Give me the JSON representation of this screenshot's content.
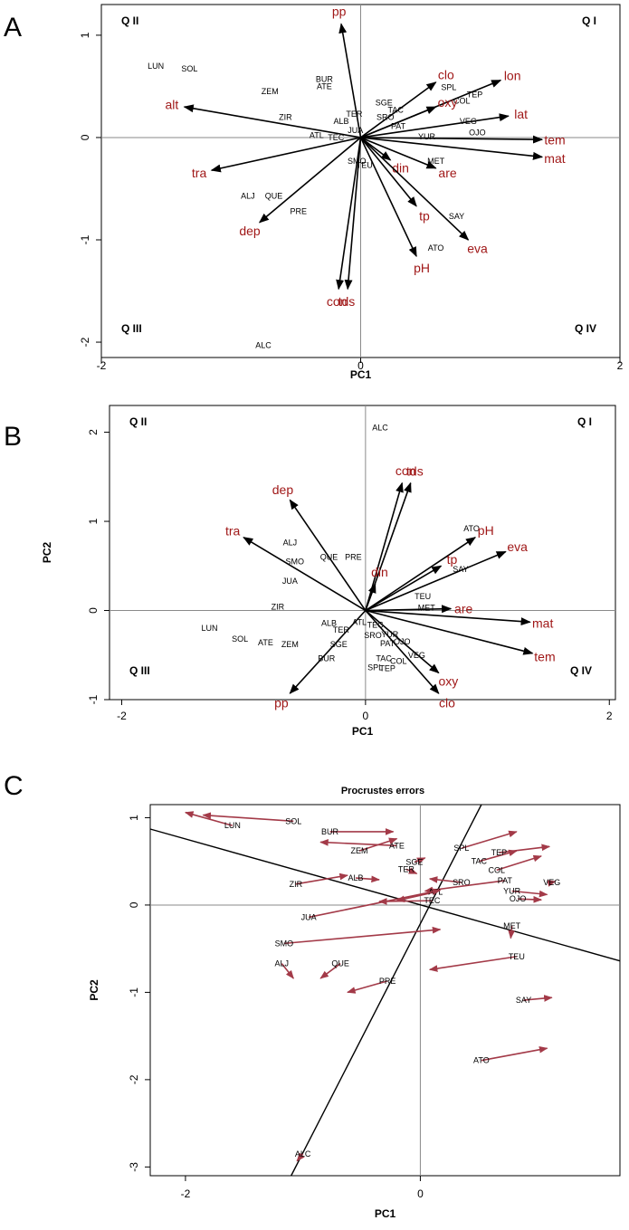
{
  "panel_labels": [
    "A",
    "B",
    "C"
  ],
  "chart_data": [
    {
      "type": "scatter",
      "subtype": "biplot",
      "panel": "A",
      "title": "",
      "xlabel": "PC1",
      "ylabel": "",
      "xlim": [
        -2,
        2
      ],
      "ylim": [
        -2.15,
        1.3
      ],
      "xticks": [
        "-2",
        "0",
        "2"
      ],
      "yticks": [
        "-2",
        "-1",
        "0",
        "1"
      ],
      "quadrants": [
        "Q II",
        "Q I",
        "Q III",
        "Q IV"
      ],
      "sites": [
        {
          "label": "LUN",
          "x": -1.58,
          "y": 0.7
        },
        {
          "label": "SOL",
          "x": -1.32,
          "y": 0.67
        },
        {
          "label": "BUR",
          "x": -0.28,
          "y": 0.57
        },
        {
          "label": "ATE",
          "x": -0.28,
          "y": 0.5
        },
        {
          "label": "ZEM",
          "x": -0.7,
          "y": 0.45
        },
        {
          "label": "ZIR",
          "x": -0.58,
          "y": 0.2
        },
        {
          "label": "ALB",
          "x": -0.15,
          "y": 0.16
        },
        {
          "label": "TER",
          "x": -0.05,
          "y": 0.23
        },
        {
          "label": "JUA",
          "x": -0.04,
          "y": 0.07
        },
        {
          "label": "ATL",
          "x": -0.34,
          "y": 0.02
        },
        {
          "label": "TEC",
          "x": -0.19,
          "y": 0.0
        },
        {
          "label": "SGE",
          "x": 0.18,
          "y": 0.34
        },
        {
          "label": "TAC",
          "x": 0.27,
          "y": 0.27
        },
        {
          "label": "SRO",
          "x": 0.19,
          "y": 0.2
        },
        {
          "label": "PAT",
          "x": 0.29,
          "y": 0.11
        },
        {
          "label": "SPL",
          "x": 0.68,
          "y": 0.49
        },
        {
          "label": "TEP",
          "x": 0.88,
          "y": 0.42
        },
        {
          "label": "COL",
          "x": 0.78,
          "y": 0.36
        },
        {
          "label": "VEG",
          "x": 0.83,
          "y": 0.16
        },
        {
          "label": "OJO",
          "x": 0.9,
          "y": 0.05
        },
        {
          "label": "YUR",
          "x": 0.51,
          "y": 0.01
        },
        {
          "label": "MET",
          "x": 0.58,
          "y": -0.23
        },
        {
          "label": "SMO",
          "x": -0.03,
          "y": -0.23
        },
        {
          "label": "TEU",
          "x": 0.03,
          "y": -0.27
        },
        {
          "label": "ALJ",
          "x": -0.87,
          "y": -0.57
        },
        {
          "label": "QUE",
          "x": -0.67,
          "y": -0.57
        },
        {
          "label": "PRE",
          "x": -0.48,
          "y": -0.72
        },
        {
          "label": "SAY",
          "x": 0.74,
          "y": -0.77
        },
        {
          "label": "ATO",
          "x": 0.58,
          "y": -1.08
        },
        {
          "label": "ALC",
          "x": -0.75,
          "y": -2.03
        }
      ],
      "vectors": [
        {
          "label": "pp",
          "x": -0.15,
          "y": 1.11
        },
        {
          "label": "clo",
          "x": 0.58,
          "y": 0.54
        },
        {
          "label": "lon",
          "x": 1.08,
          "y": 0.56
        },
        {
          "label": "alt",
          "x": -1.36,
          "y": 0.3
        },
        {
          "label": "oxy",
          "x": 0.58,
          "y": 0.3
        },
        {
          "label": "lat",
          "x": 1.14,
          "y": 0.21
        },
        {
          "label": "tem",
          "x": 1.4,
          "y": -0.02
        },
        {
          "label": "mat",
          "x": 1.4,
          "y": -0.19
        },
        {
          "label": "din",
          "x": 0.23,
          "y": -0.22
        },
        {
          "label": "are",
          "x": 0.58,
          "y": -0.3
        },
        {
          "label": "tra",
          "x": -1.15,
          "y": -0.32
        },
        {
          "label": "dep",
          "x": -0.78,
          "y": -0.83
        },
        {
          "label": "tp",
          "x": 0.43,
          "y": -0.67
        },
        {
          "label": "eva",
          "x": 0.83,
          "y": -1.0
        },
        {
          "label": "pH",
          "x": 0.43,
          "y": -1.16
        },
        {
          "label": "con",
          "x": -0.17,
          "y": -1.48
        },
        {
          "label": "tds",
          "x": -0.1,
          "y": -1.48
        }
      ]
    },
    {
      "type": "scatter",
      "subtype": "biplot",
      "panel": "B",
      "title": "",
      "xlabel": "PC1",
      "ylabel": "PC2",
      "xlim": [
        -2.1,
        2.05
      ],
      "ylim": [
        -1.0,
        2.3
      ],
      "xticks": [
        "-2",
        "0",
        "2"
      ],
      "yticks": [
        "-1",
        "0",
        "1",
        "2"
      ],
      "quadrants": [
        "Q II",
        "Q I",
        "Q III",
        "Q IV"
      ],
      "sites": [
        {
          "label": "ALC",
          "x": 0.12,
          "y": 2.05
        },
        {
          "label": "ALJ",
          "x": -0.62,
          "y": 0.76
        },
        {
          "label": "SMO",
          "x": -0.58,
          "y": 0.55
        },
        {
          "label": "QUE",
          "x": -0.3,
          "y": 0.6
        },
        {
          "label": "PRE",
          "x": -0.1,
          "y": 0.6
        },
        {
          "label": "JUA",
          "x": -0.62,
          "y": 0.33
        },
        {
          "label": "ZIR",
          "x": -0.72,
          "y": 0.04
        },
        {
          "label": "LUN",
          "x": -1.28,
          "y": -0.2
        },
        {
          "label": "SOL",
          "x": -1.03,
          "y": -0.32
        },
        {
          "label": "ATE",
          "x": -0.82,
          "y": -0.36
        },
        {
          "label": "ZEM",
          "x": -0.62,
          "y": -0.38
        },
        {
          "label": "BUR",
          "x": -0.32,
          "y": -0.54
        },
        {
          "label": "ALB",
          "x": -0.3,
          "y": -0.14
        },
        {
          "label": "TER",
          "x": -0.2,
          "y": -0.22
        },
        {
          "label": "SGE",
          "x": -0.22,
          "y": -0.38
        },
        {
          "label": "ATL",
          "x": -0.05,
          "y": -0.13
        },
        {
          "label": "TEC",
          "x": 0.08,
          "y": -0.16
        },
        {
          "label": "SRO",
          "x": 0.06,
          "y": -0.28
        },
        {
          "label": "PAT",
          "x": 0.18,
          "y": -0.37
        },
        {
          "label": "OJO",
          "x": 0.3,
          "y": -0.35
        },
        {
          "label": "YUR",
          "x": 0.2,
          "y": -0.27
        },
        {
          "label": "VEG",
          "x": 0.42,
          "y": -0.5
        },
        {
          "label": "TAC",
          "x": 0.15,
          "y": -0.54
        },
        {
          "label": "COL",
          "x": 0.27,
          "y": -0.57
        },
        {
          "label": "SPL",
          "x": 0.08,
          "y": -0.64
        },
        {
          "label": "TEP",
          "x": 0.18,
          "y": -0.65
        },
        {
          "label": "TEU",
          "x": 0.47,
          "y": 0.16
        },
        {
          "label": "MET",
          "x": 0.5,
          "y": 0.03
        },
        {
          "label": "SAY",
          "x": 0.78,
          "y": 0.46
        },
        {
          "label": "ATO",
          "x": 0.87,
          "y": 0.92
        }
      ],
      "vectors": [
        {
          "label": "con",
          "x": 0.3,
          "y": 1.43
        },
        {
          "label": "tds",
          "x": 0.37,
          "y": 1.43
        },
        {
          "label": "dep",
          "x": -0.62,
          "y": 1.24
        },
        {
          "label": "tra",
          "x": -1.0,
          "y": 0.82
        },
        {
          "label": "pH",
          "x": 0.9,
          "y": 0.82
        },
        {
          "label": "eva",
          "x": 1.15,
          "y": 0.66
        },
        {
          "label": "tp",
          "x": 0.62,
          "y": 0.5
        },
        {
          "label": "din",
          "x": 0.08,
          "y": 0.3
        },
        {
          "label": "are",
          "x": 0.7,
          "y": 0.02
        },
        {
          "label": "mat",
          "x": 1.35,
          "y": -0.13
        },
        {
          "label": "tem",
          "x": 1.37,
          "y": -0.48
        },
        {
          "label": "oxy",
          "x": 0.6,
          "y": -0.7
        },
        {
          "label": "clo",
          "x": 0.6,
          "y": -0.93
        },
        {
          "label": "pp",
          "x": -0.62,
          "y": -0.93
        }
      ]
    },
    {
      "type": "scatter",
      "subtype": "procrustes",
      "panel": "C",
      "title": "Procrustes errors",
      "xlabel": "PC1",
      "ylabel": "PC2",
      "xlim": [
        -2.3,
        1.7
      ],
      "ylim": [
        -3.1,
        1.15
      ],
      "xticks": [
        "-2",
        "0"
      ],
      "yticks": [
        "-3",
        "-2",
        "-1",
        "0",
        "1"
      ],
      "rotation_axes": [
        {
          "from": [
            -2.3,
            0.87
          ],
          "to": [
            1.7,
            -0.64
          ]
        },
        {
          "from": [
            -1.1,
            -3.1
          ],
          "to": [
            0.52,
            1.15
          ]
        }
      ],
      "sites": [
        {
          "label": "SOL",
          "x": -1.08,
          "y": 0.96,
          "ox": -1.85,
          "oy": 1.03
        },
        {
          "label": "LUN",
          "x": -1.6,
          "y": 0.91,
          "ox": -2.0,
          "oy": 1.06
        },
        {
          "label": "BUR",
          "x": -0.77,
          "y": 0.84,
          "ox": -0.23,
          "oy": 0.84
        },
        {
          "label": "ATE",
          "x": -0.2,
          "y": 0.68,
          "ox": -0.85,
          "oy": 0.72
        },
        {
          "label": "ZEM",
          "x": -0.52,
          "y": 0.62,
          "ox": -0.2,
          "oy": 0.76
        },
        {
          "label": "SGE",
          "x": -0.05,
          "y": 0.49,
          "ox": 0.04,
          "oy": 0.54
        },
        {
          "label": "SPL",
          "x": 0.35,
          "y": 0.65,
          "ox": 0.82,
          "oy": 0.84
        },
        {
          "label": "TAC",
          "x": 0.5,
          "y": 0.5,
          "ox": 0.82,
          "oy": 0.62
        },
        {
          "label": "TEP",
          "x": 0.67,
          "y": 0.6,
          "ox": 1.1,
          "oy": 0.67
        },
        {
          "label": "COL",
          "x": 0.65,
          "y": 0.4,
          "ox": 1.03,
          "oy": 0.56
        },
        {
          "label": "ZIR",
          "x": -1.06,
          "y": 0.24,
          "ox": -0.62,
          "oy": 0.34
        },
        {
          "label": "ALB",
          "x": -0.55,
          "y": 0.31,
          "ox": -0.35,
          "oy": 0.29
        },
        {
          "label": "TER",
          "x": -0.12,
          "y": 0.41,
          "ox": -0.03,
          "oy": 0.36
        },
        {
          "label": "SRO",
          "x": 0.35,
          "y": 0.26,
          "ox": 0.08,
          "oy": 0.3
        },
        {
          "label": "PAT",
          "x": 0.72,
          "y": 0.28,
          "ox": 0.04,
          "oy": 0.16
        },
        {
          "label": "VEG",
          "x": 1.12,
          "y": 0.26,
          "ox": 1.15,
          "oy": 0.27
        },
        {
          "label": "ATL",
          "x": 0.13,
          "y": 0.15,
          "ox": -0.2,
          "oy": 0.05
        },
        {
          "label": "YUR",
          "x": 0.78,
          "y": 0.16,
          "ox": 1.08,
          "oy": 0.12
        },
        {
          "label": "OJO",
          "x": 0.83,
          "y": 0.07,
          "ox": 1.03,
          "oy": 0.06
        },
        {
          "label": "TEC",
          "x": 0.1,
          "y": 0.05,
          "ox": -0.35,
          "oy": 0.04
        },
        {
          "label": "JUA",
          "x": -0.95,
          "y": -0.14,
          "ox": 0.17,
          "oy": 0.17
        },
        {
          "label": "MET",
          "x": 0.78,
          "y": -0.24,
          "ox": 0.77,
          "oy": -0.38
        },
        {
          "label": "SMO",
          "x": -1.16,
          "y": -0.44,
          "ox": 0.17,
          "oy": -0.28
        },
        {
          "label": "TEU",
          "x": 0.82,
          "y": -0.59,
          "ox": 0.08,
          "oy": -0.74
        },
        {
          "label": "ALJ",
          "x": -1.18,
          "y": -0.67,
          "ox": -1.08,
          "oy": -0.84
        },
        {
          "label": "QUE",
          "x": -0.68,
          "y": -0.67,
          "ox": -0.85,
          "oy": -0.84
        },
        {
          "label": "PRE",
          "x": -0.28,
          "y": -0.87,
          "ox": -0.62,
          "oy": -1.0
        },
        {
          "label": "SAY",
          "x": 0.88,
          "y": -1.09,
          "ox": 1.12,
          "oy": -1.06
        },
        {
          "label": "ATO",
          "x": 0.52,
          "y": -1.78,
          "ox": 1.08,
          "oy": -1.64
        },
        {
          "label": "ALC",
          "x": -1.0,
          "y": -2.85,
          "ox": -1.05,
          "oy": -2.93
        }
      ]
    }
  ]
}
